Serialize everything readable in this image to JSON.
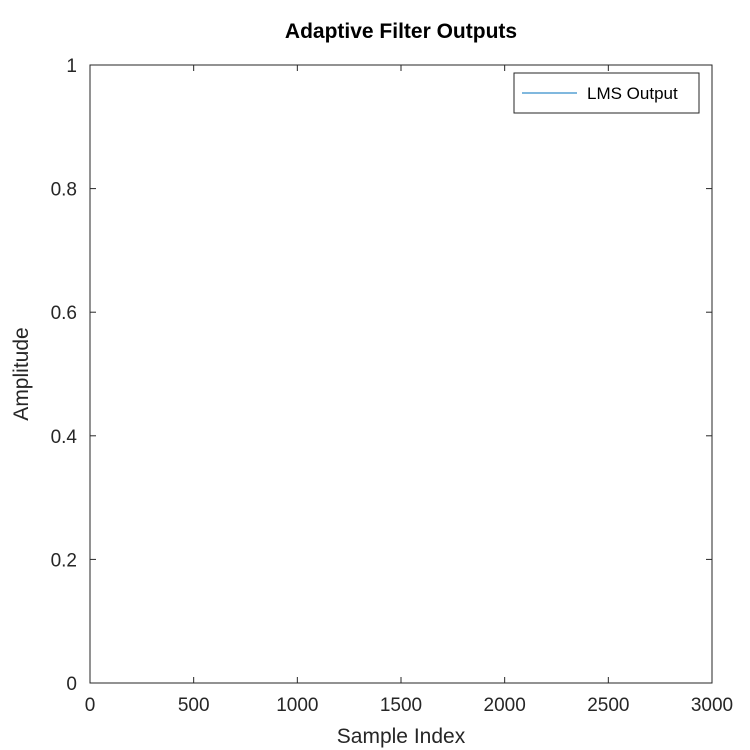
{
  "chart_data": {
    "type": "line",
    "title": "Adaptive Filter Outputs",
    "xlabel": "Sample Index",
    "ylabel": "Amplitude",
    "xlim": [
      0,
      3000
    ],
    "ylim": [
      0,
      1
    ],
    "xticks": [
      {
        "value": 0,
        "label": "0"
      },
      {
        "value": 500,
        "label": "500"
      },
      {
        "value": 1000,
        "label": "1000"
      },
      {
        "value": 1500,
        "label": "1500"
      },
      {
        "value": 2000,
        "label": "2000"
      },
      {
        "value": 2500,
        "label": "2500"
      },
      {
        "value": 3000,
        "label": "3000"
      }
    ],
    "yticks": [
      {
        "value": 0,
        "label": "0"
      },
      {
        "value": 0.2,
        "label": "0.2"
      },
      {
        "value": 0.4,
        "label": "0.4"
      },
      {
        "value": 0.6,
        "label": "0.6"
      },
      {
        "value": 0.8,
        "label": "0.8"
      },
      {
        "value": 1,
        "label": "1"
      }
    ],
    "grid": false,
    "legend_position": "top-right",
    "series": [
      {
        "name": "LMS Output",
        "color": "#0072bd",
        "x": [],
        "y": []
      }
    ]
  }
}
